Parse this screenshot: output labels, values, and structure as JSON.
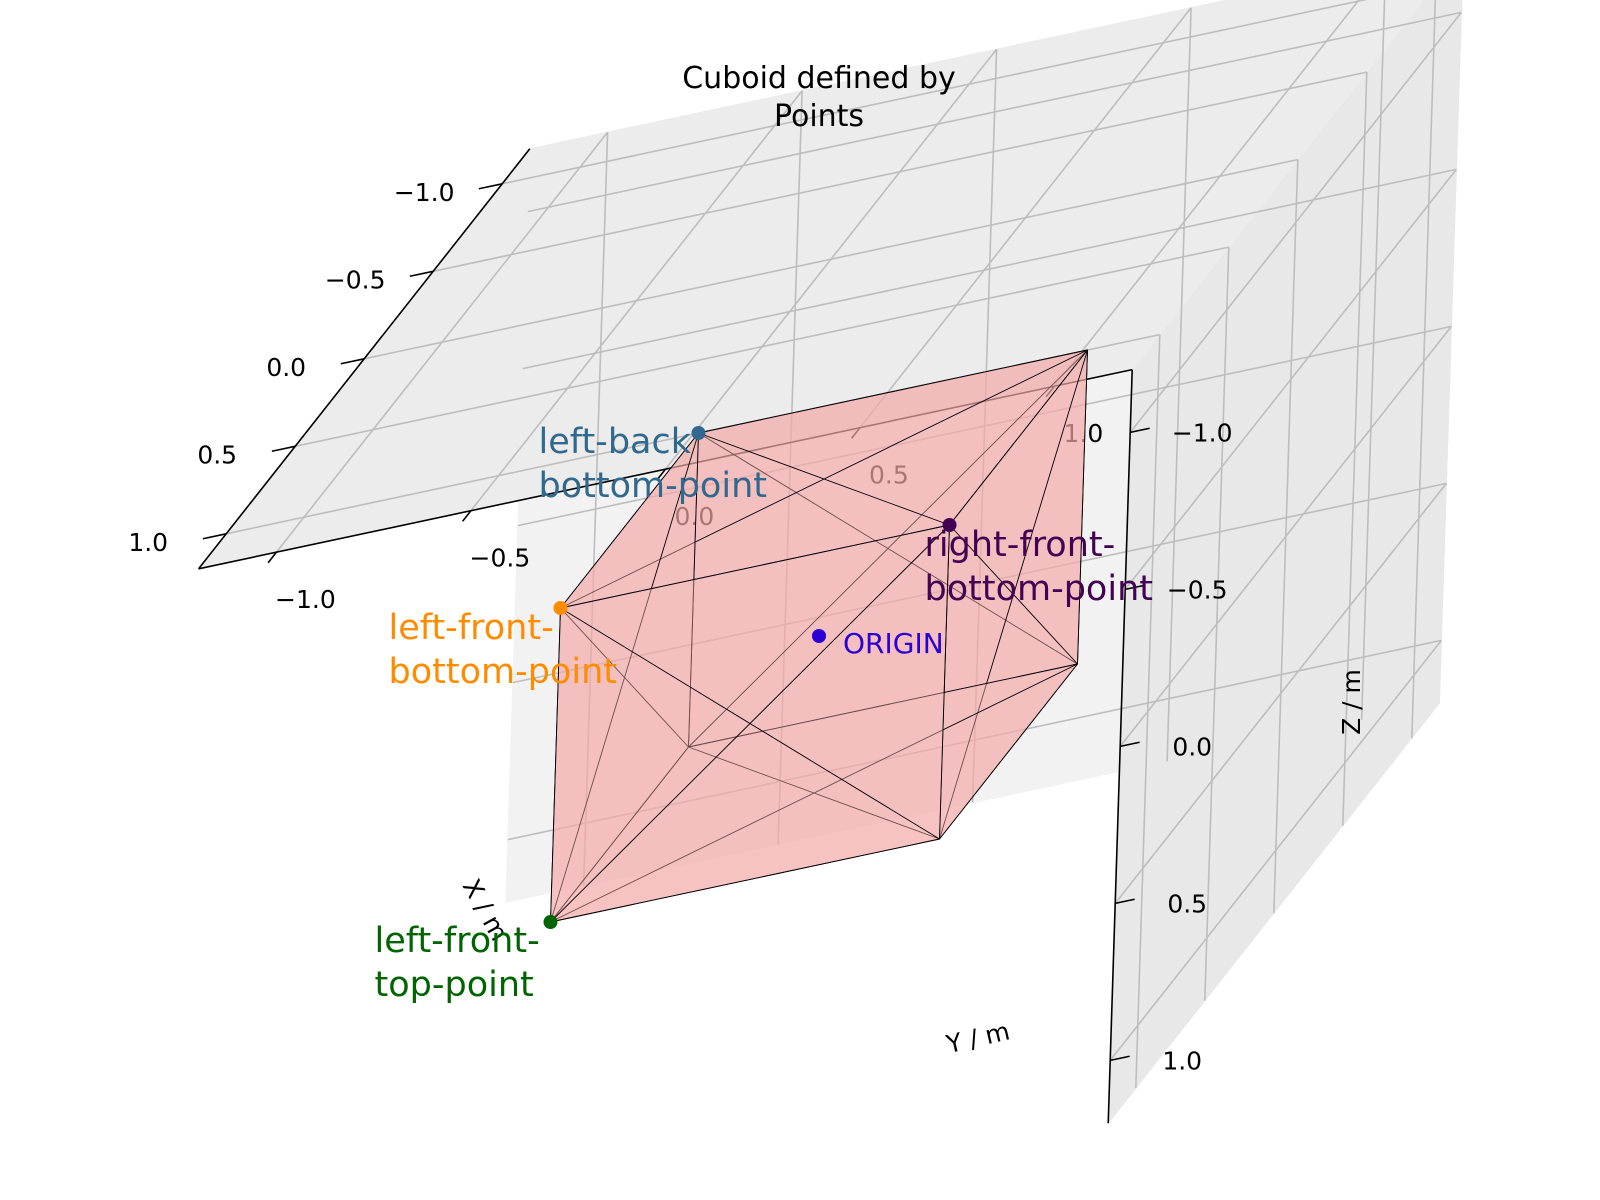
{
  "chart_data": {
    "type": "scatter",
    "projection": "3d",
    "title": [
      "Cuboid defined by",
      "Points"
    ],
    "xlabel": "X / m",
    "ylabel": "Y / m",
    "zlabel": "Z / m",
    "xlim": [
      -1.2,
      1.2
    ],
    "ylim": [
      -1.2,
      1.2
    ],
    "zlim": [
      -1.2,
      1.2
    ],
    "xticks": [
      "−1.0",
      "−0.5",
      "0.0",
      "0.5",
      "1.0"
    ],
    "yticks": [
      "−1.0",
      "−0.5",
      "0.0",
      "0.5",
      "1.0"
    ],
    "zticks": [
      "−1.0",
      "−0.5",
      "0.0",
      "0.5",
      "1.0"
    ],
    "grid": true,
    "cuboid": {
      "face_color": "#f4a9a9",
      "edge_color": "#000000",
      "corners": {
        "min": [
          -0.5,
          -0.5,
          -0.5
        ],
        "max": [
          0.5,
          0.5,
          0.5
        ]
      }
    },
    "points": [
      {
        "name": "ORIGIN",
        "label": [
          "ORIGIN"
        ],
        "x": 0.0,
        "y": 0.0,
        "z": 0.0,
        "color": "#2a00d5"
      },
      {
        "name": "left-back-bottom-point",
        "label": [
          "left-back",
          "bottom-point"
        ],
        "x": -0.5,
        "y": -0.5,
        "z": -0.5,
        "color": "#31688e"
      },
      {
        "name": "left-front-top-point",
        "label": [
          "left-front-",
          "top-point"
        ],
        "x": 0.5,
        "y": -0.5,
        "z": 0.5,
        "color": "#006400"
      },
      {
        "name": "left-front-bottom-point",
        "label": [
          "left-front-",
          "bottom-point"
        ],
        "x": 0.5,
        "y": -0.5,
        "z": -0.5,
        "color": "#ff8c00"
      },
      {
        "name": "right-front-bottom-point",
        "label": [
          "right-front-",
          "bottom-point"
        ],
        "x": 0.5,
        "y": 0.5,
        "z": -0.5,
        "color": "#440154"
      }
    ]
  }
}
